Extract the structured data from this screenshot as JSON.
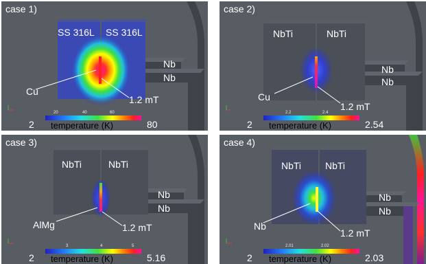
{
  "panels": [
    {
      "case_label": "case 1)",
      "left_block": "SS 316L",
      "right_block": "SS 316L",
      "gap_material": "Cu",
      "field_label": "1.2 mT",
      "strip_upper": "Nb",
      "strip_lower": "Nb",
      "colorbar": {
        "min": "2",
        "max": "80",
        "title": "temperature (K)",
        "ticks": [
          "20",
          "40",
          "60"
        ]
      }
    },
    {
      "case_label": "case 2)",
      "left_block": "NbTi",
      "right_block": "NbTi",
      "gap_material": "Cu",
      "field_label": "1.2 mT",
      "strip_upper": "Nb",
      "strip_lower": "Nb",
      "colorbar": {
        "min": "2",
        "max": "2.54",
        "title": "temperature (K)",
        "ticks": [
          "2.2",
          "2.4"
        ]
      }
    },
    {
      "case_label": "case 3)",
      "left_block": "NbTi",
      "right_block": "NbTi",
      "gap_material": "AlMg",
      "field_label": "1.2 mT",
      "strip_upper": "Nb",
      "strip_lower": "Nb",
      "colorbar": {
        "min": "2",
        "max": "5.16",
        "title": "temperature (K)",
        "ticks": [
          "3",
          "4",
          "5"
        ]
      }
    },
    {
      "case_label": "case 4)",
      "left_block": "NbTi",
      "right_block": "NbTi",
      "gap_material": "Nb",
      "field_label": "1.2 mT",
      "strip_upper": "Nb",
      "strip_lower": "Nb",
      "colorbar": {
        "min": "2",
        "max": "2.03",
        "title": "temperature (K)",
        "ticks": [
          "2.01",
          "2.02"
        ]
      }
    }
  ],
  "colors": {
    "background": "#585c63",
    "block": "#4b5058",
    "cold": "#2a35c8",
    "hot": "#e8159a"
  }
}
